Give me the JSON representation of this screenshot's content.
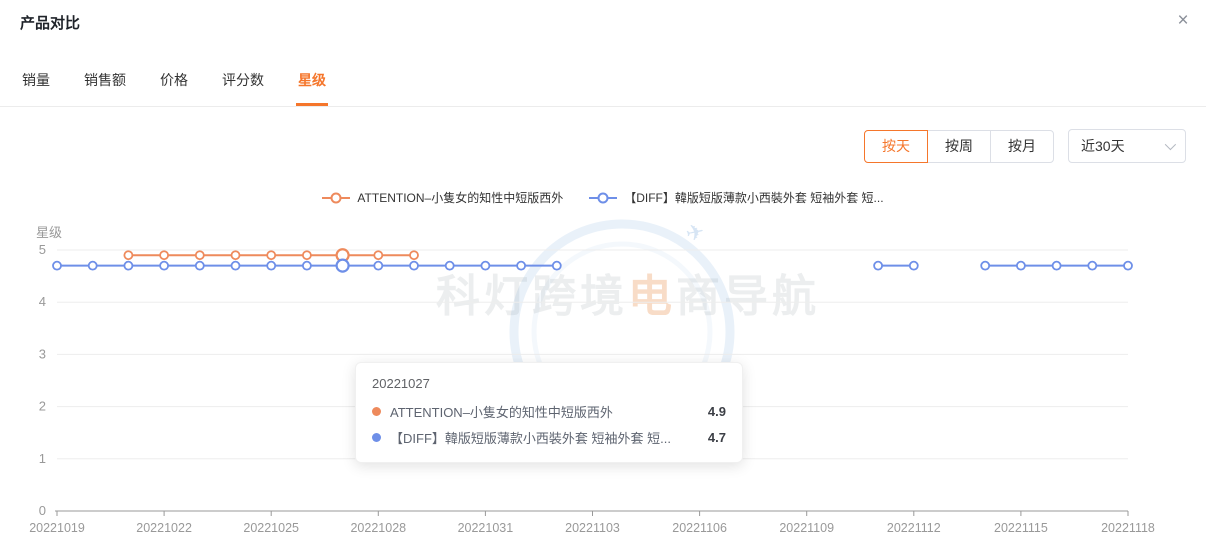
{
  "header": {
    "title": "产品对比",
    "close_icon": "×"
  },
  "tabs": [
    {
      "key": "sales-volume",
      "label": "销量",
      "active": false
    },
    {
      "key": "sales-amount",
      "label": "销售额",
      "active": false
    },
    {
      "key": "price",
      "label": "价格",
      "active": false
    },
    {
      "key": "rating-count",
      "label": "评分数",
      "active": false
    },
    {
      "key": "star-rating",
      "label": "星级",
      "active": true
    }
  ],
  "controls": {
    "granularity": [
      {
        "key": "day",
        "label": "按天",
        "selected": true
      },
      {
        "key": "week",
        "label": "按周",
        "selected": false
      },
      {
        "key": "month",
        "label": "按月",
        "selected": false
      }
    ],
    "date_range": {
      "value": "近30天"
    }
  },
  "watermark": {
    "prefix": "科灯跨境",
    "highlight": "电",
    "suffix": "商导航",
    "plane_icon": "✈"
  },
  "tooltip": {
    "title": "20221027",
    "rows": [
      {
        "name": "ATTENTION–小隻女的知性中短版西外",
        "value": "4.9",
        "color": "#EE8A5C"
      },
      {
        "name": "【DIFF】韓版短版薄款小西裝外套 短袖外套 短...",
        "value": "4.7",
        "color": "#6E8FE8"
      }
    ]
  },
  "chart_data": {
    "type": "line",
    "title": "",
    "xlabel": "",
    "ylabel": "星级",
    "ylim": [
      0,
      5
    ],
    "y_ticks": [
      0,
      1,
      2,
      3,
      4,
      5
    ],
    "grid": true,
    "legend_position": "top-center",
    "x_label_every": 3,
    "hover_index": 8,
    "x_dates": [
      "20221019",
      "20221020",
      "20221021",
      "20221022",
      "20221023",
      "20221024",
      "20221025",
      "20221026",
      "20221027",
      "20221028",
      "20221029",
      "20221030",
      "20221031",
      "20221101",
      "20221102",
      "20221103",
      "20221104",
      "20221105",
      "20221106",
      "20221107",
      "20221108",
      "20221109",
      "20221110",
      "20221111",
      "20221112",
      "20221113",
      "20221114",
      "20221115",
      "20221116",
      "20221117",
      "20221118"
    ],
    "series": [
      {
        "name": "ATTENTION–小隻女的知性中短版西外",
        "color": "#EE8A5C",
        "values": [
          null,
          null,
          4.9,
          4.9,
          4.9,
          4.9,
          4.9,
          4.9,
          4.9,
          4.9,
          4.9,
          null,
          null,
          null,
          null,
          null,
          null,
          null,
          null,
          null,
          null,
          null,
          null,
          null,
          null,
          null,
          null,
          null,
          null,
          null,
          null
        ]
      },
      {
        "name": "【DIFF】韓版短版薄款小西裝外套 短袖外套 短...",
        "color": "#6E8FE8",
        "values": [
          4.7,
          4.7,
          4.7,
          4.7,
          4.7,
          4.7,
          4.7,
          4.7,
          4.7,
          4.7,
          4.7,
          4.7,
          4.7,
          4.7,
          4.7,
          null,
          null,
          null,
          null,
          null,
          null,
          null,
          null,
          4.7,
          4.7,
          null,
          4.7,
          4.7,
          4.7,
          4.7,
          4.7
        ]
      }
    ]
  },
  "colors": {
    "accent": "#F5762B",
    "grid_line": "#ededed",
    "axis_line": "#999999",
    "axis_label": "#999999"
  }
}
